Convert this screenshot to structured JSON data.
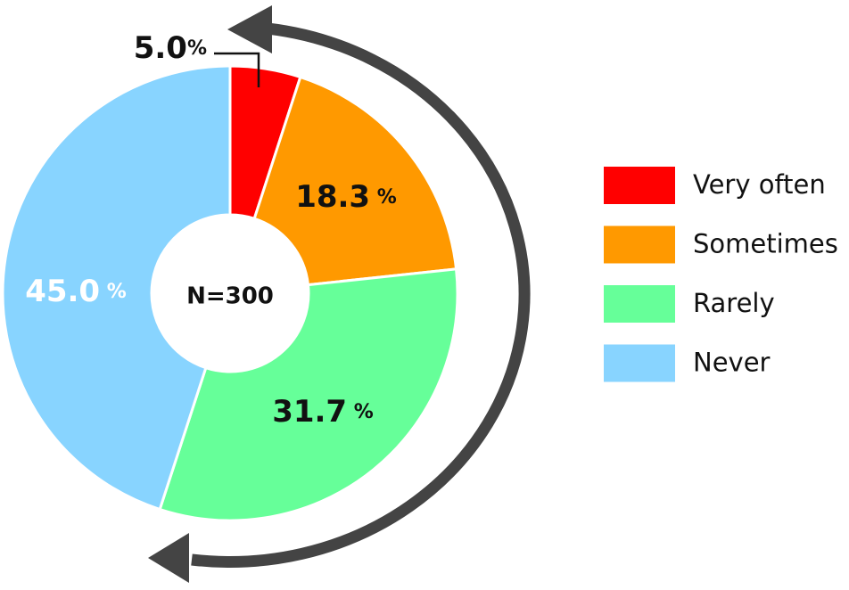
{
  "chart_data": {
    "type": "donut",
    "categories": [
      "Very often",
      "Sometimes",
      "Rarely",
      "Never"
    ],
    "values": [
      5.0,
      18.3,
      31.7,
      45.0
    ],
    "value_labels": [
      "5.0%",
      "18.3 %",
      "31.7 %",
      "45.0 %"
    ],
    "colors": [
      "#ff0000",
      "#ff9900",
      "#66ff99",
      "#88d4ff"
    ],
    "center_label": "N=300",
    "legend": "right"
  }
}
